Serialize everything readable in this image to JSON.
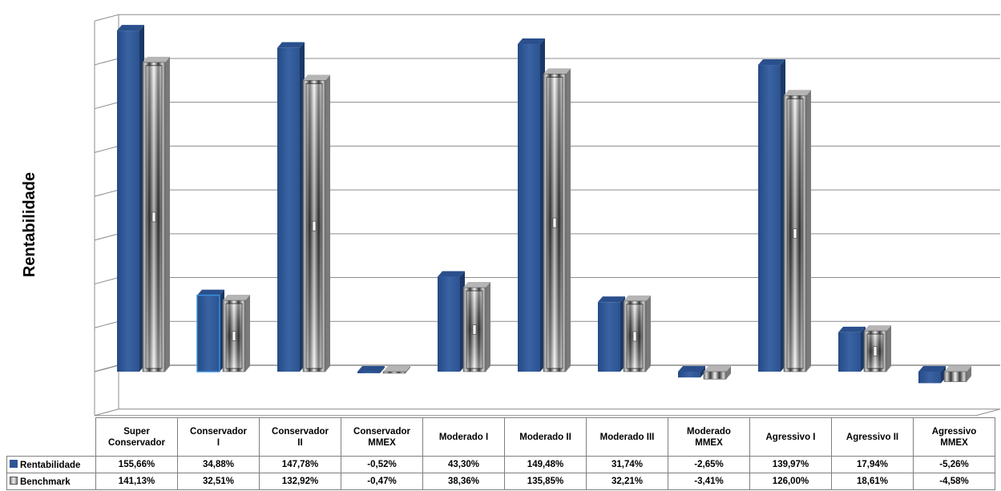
{
  "chart_data": {
    "type": "bar",
    "title": "",
    "ylabel": "Rentabilidade",
    "xlabel": "",
    "ylim": [
      -20,
      160
    ],
    "grid": true,
    "categories": [
      [
        "Super",
        "Conservador"
      ],
      [
        "Conservador",
        "I"
      ],
      [
        "Conservador",
        "II"
      ],
      [
        "Conservador",
        "MMEX"
      ],
      [
        "Moderado I"
      ],
      [
        "Moderado II"
      ],
      [
        "Moderado III"
      ],
      [
        "Moderado",
        "MMEX"
      ],
      [
        "Agressivo I"
      ],
      [
        "Agressivo II"
      ],
      [
        "Agressivo",
        "MMEX"
      ]
    ],
    "series": [
      {
        "name": "Rentabilidade",
        "color": "#2f5694",
        "values": [
          155.66,
          34.88,
          147.78,
          -0.52,
          43.3,
          149.48,
          31.74,
          -2.65,
          139.97,
          17.94,
          -5.26
        ],
        "labels": [
          "155,66%",
          "34,88%",
          "147,78%",
          "-0,52%",
          "43,30%",
          "149,48%",
          "31,74%",
          "-2,65%",
          "139,97%",
          "17,94%",
          "-5,26%"
        ]
      },
      {
        "name": "Benchmark",
        "color": "#9a9a9a",
        "values": [
          141.13,
          32.51,
          132.92,
          -0.47,
          38.36,
          135.85,
          32.21,
          -3.41,
          126.0,
          18.61,
          -4.58
        ],
        "labels": [
          "141,13%",
          "32,51%",
          "132,92%",
          "-0,47%",
          "38,36%",
          "135,85%",
          "32,21%",
          "-3,41%",
          "126,00%",
          "18,61%",
          "-4,58%"
        ]
      }
    ],
    "legend": "data-table"
  }
}
